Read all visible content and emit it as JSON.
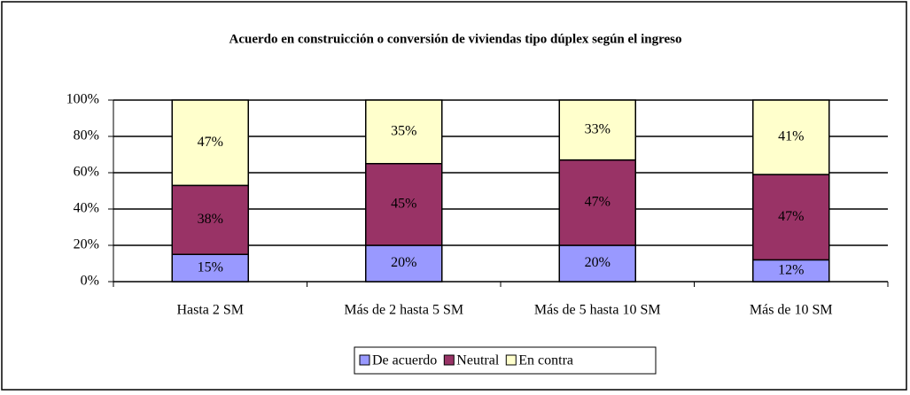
{
  "chart_data": {
    "type": "stacked_bar",
    "title": "Acuerdo en construicción o conversión de viviendas tipo dúplex según el ingreso",
    "categories": [
      "Hasta 2 SM",
      "Más de 2 hasta 5 SM",
      "Más de 5 hasta 10 SM",
      "Más de 10 SM"
    ],
    "series": [
      {
        "name": "De acuerdo",
        "color": "#9999ff",
        "values": [
          15,
          20,
          20,
          12
        ],
        "value_labels": [
          "15%",
          "20%",
          "20%",
          "12%"
        ]
      },
      {
        "name": "Neutral",
        "color": "#993366",
        "values": [
          38,
          45,
          47,
          47
        ],
        "value_labels": [
          "38%",
          "45%",
          "47%",
          "47%"
        ]
      },
      {
        "name": "En contra",
        "color": "#ffffcc",
        "values": [
          47,
          35,
          33,
          41
        ],
        "value_labels": [
          "47%",
          "35%",
          "33%",
          "41%"
        ]
      }
    ],
    "ylim": [
      0,
      100
    ],
    "yticks": [
      {
        "value": 0,
        "label": "0%"
      },
      {
        "value": 20,
        "label": "20%"
      },
      {
        "value": 40,
        "label": "40%"
      },
      {
        "value": 60,
        "label": "60%"
      },
      {
        "value": 80,
        "label": "80%"
      },
      {
        "value": 100,
        "label": "100%"
      }
    ],
    "grid": true,
    "legend": "bottom"
  }
}
